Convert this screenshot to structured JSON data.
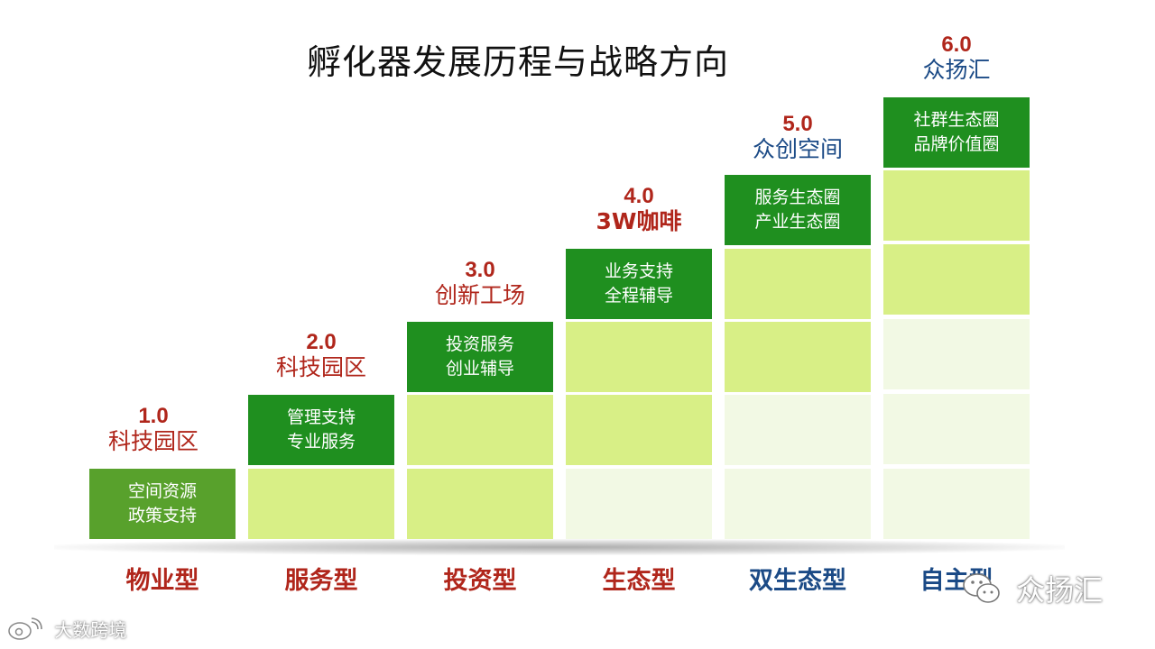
{
  "title": "孵化器发展历程与战略方向",
  "stages": [
    {
      "version": "1.0",
      "name": "科技园区",
      "box_lines": [
        "空间资源",
        "政策支持"
      ],
      "category": "物业型",
      "text_color": "#b0261b"
    },
    {
      "version": "2.0",
      "name": "科技园区",
      "box_lines": [
        "管理支持",
        "专业服务"
      ],
      "category": "服务型",
      "text_color": "#b0261b"
    },
    {
      "version": "3.0",
      "name": "创新工场",
      "box_lines": [
        "投资服务",
        "创业辅导"
      ],
      "category": "投资型",
      "text_color": "#b0261b"
    },
    {
      "version": "4.0",
      "name": "3W咖啡",
      "box_lines": [
        "业务支持",
        "全程辅导"
      ],
      "category": "生态型",
      "text_color": "#b0261b"
    },
    {
      "version": "5.0",
      "name": "众创空间",
      "box_lines": [
        "服务生态圈",
        "产业生态圈"
      ],
      "category": "双生态型",
      "text_color": "#1b4a86"
    },
    {
      "version": "6.0",
      "name": "众扬汇",
      "box_lines": [
        "社群生态圈",
        "品牌价值圈"
      ],
      "category": "自主型",
      "text_color": "#1b4a86"
    }
  ],
  "colors": {
    "dark_green": "#1f8f1f",
    "olive_green": "#58a12c",
    "light_green": "#d8ef86",
    "faint_green": "#f2f9e4",
    "red": "#b0261b",
    "blue": "#1b4a86"
  },
  "watermarks": {
    "left": "大数跨境",
    "right": "众扬汇",
    "left_icon": "weibo-icon",
    "right_icon": "wechat-icon"
  }
}
